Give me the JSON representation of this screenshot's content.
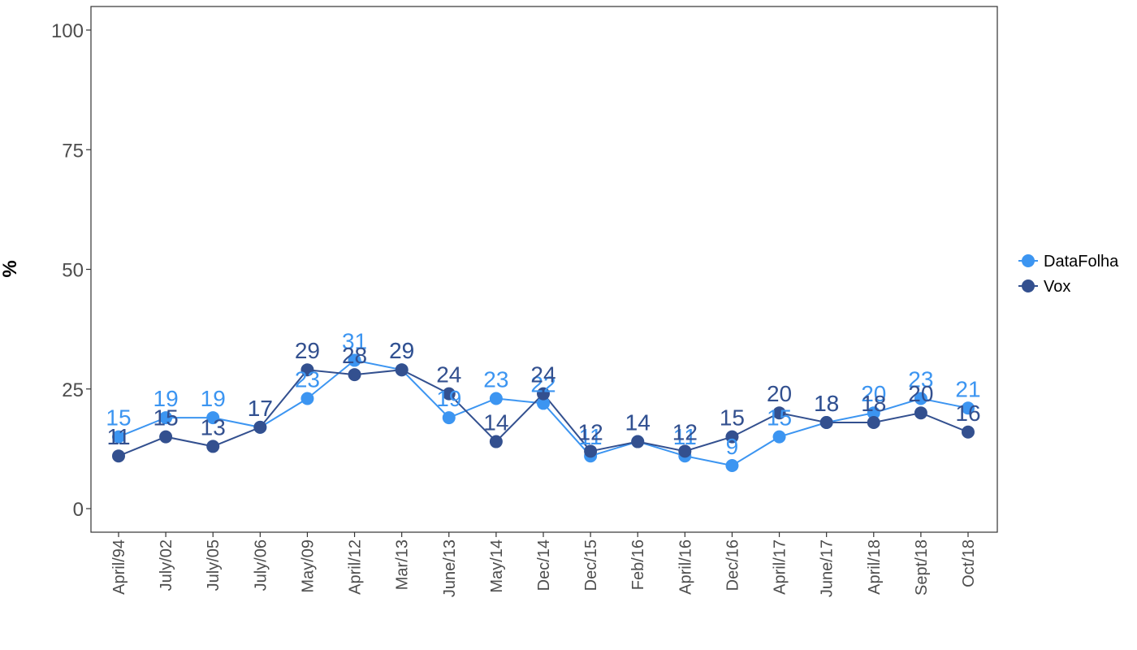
{
  "chart_data": {
    "type": "line",
    "title": "",
    "xlabel": "",
    "ylabel": "%",
    "ylim": [
      0,
      100
    ],
    "yticks": [
      0,
      25,
      50,
      75,
      100
    ],
    "grid": false,
    "legend_position": "right",
    "categories": [
      "April/94",
      "July/02",
      "July/05",
      "July/06",
      "May/09",
      "April/12",
      "Mar/13",
      "June/13",
      "May/14",
      "Dec/14",
      "Dec/15",
      "Feb/16",
      "April/16",
      "Dec/16",
      "April/17",
      "June/17",
      "April/18",
      "Sept/18",
      "Oct/18"
    ],
    "series": [
      {
        "name": "DataFolha",
        "color": "#3c95f1",
        "values": [
          15,
          19,
          19,
          17,
          23,
          31,
          29,
          19,
          23,
          22,
          11,
          14,
          11,
          9,
          15,
          18,
          20,
          23,
          21
        ]
      },
      {
        "name": "Vox",
        "color": "#33508f",
        "values": [
          11,
          15,
          13,
          17,
          29,
          28,
          29,
          24,
          14,
          24,
          12,
          14,
          12,
          15,
          20,
          18,
          18,
          20,
          16
        ]
      }
    ]
  }
}
